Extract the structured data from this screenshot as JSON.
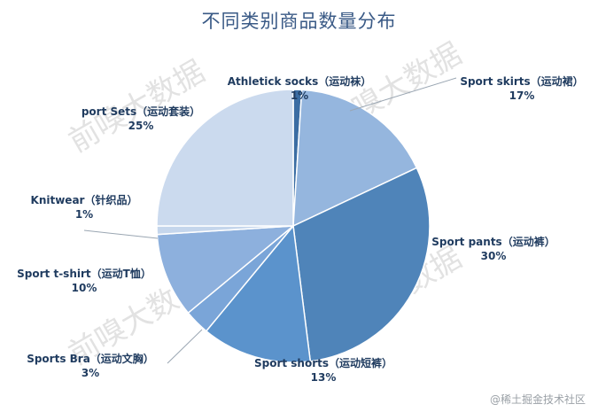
{
  "chart_data": {
    "type": "pie",
    "title": "不同类别商品数量分布",
    "categories": [
      "Athletick socks（运动袜）",
      "Sport skirts（运动裙）",
      "Sport pants（运动裤）",
      "Sport shorts（运动短裤）",
      "Sports Bra（运动文胸）",
      "Sport t-shirt（运动T恤）",
      "Knitwear（针织品）",
      "port Sets（运动套装）"
    ],
    "values": [
      1,
      17,
      30,
      13,
      3,
      10,
      1,
      25
    ],
    "value_labels": [
      "1%",
      "17%",
      "30%",
      "13%",
      "3%",
      "10%",
      "1%",
      "25%"
    ],
    "colors": [
      "#3b6da3",
      "#95b6de",
      "#4f84b9",
      "#5b93cc",
      "#7aa5d8",
      "#8db0dd",
      "#c5d6ec",
      "#cbdaee"
    ],
    "legend": "none"
  },
  "watermark": "前嗅大数据",
  "footer_credit": "@稀土掘金技术社区"
}
